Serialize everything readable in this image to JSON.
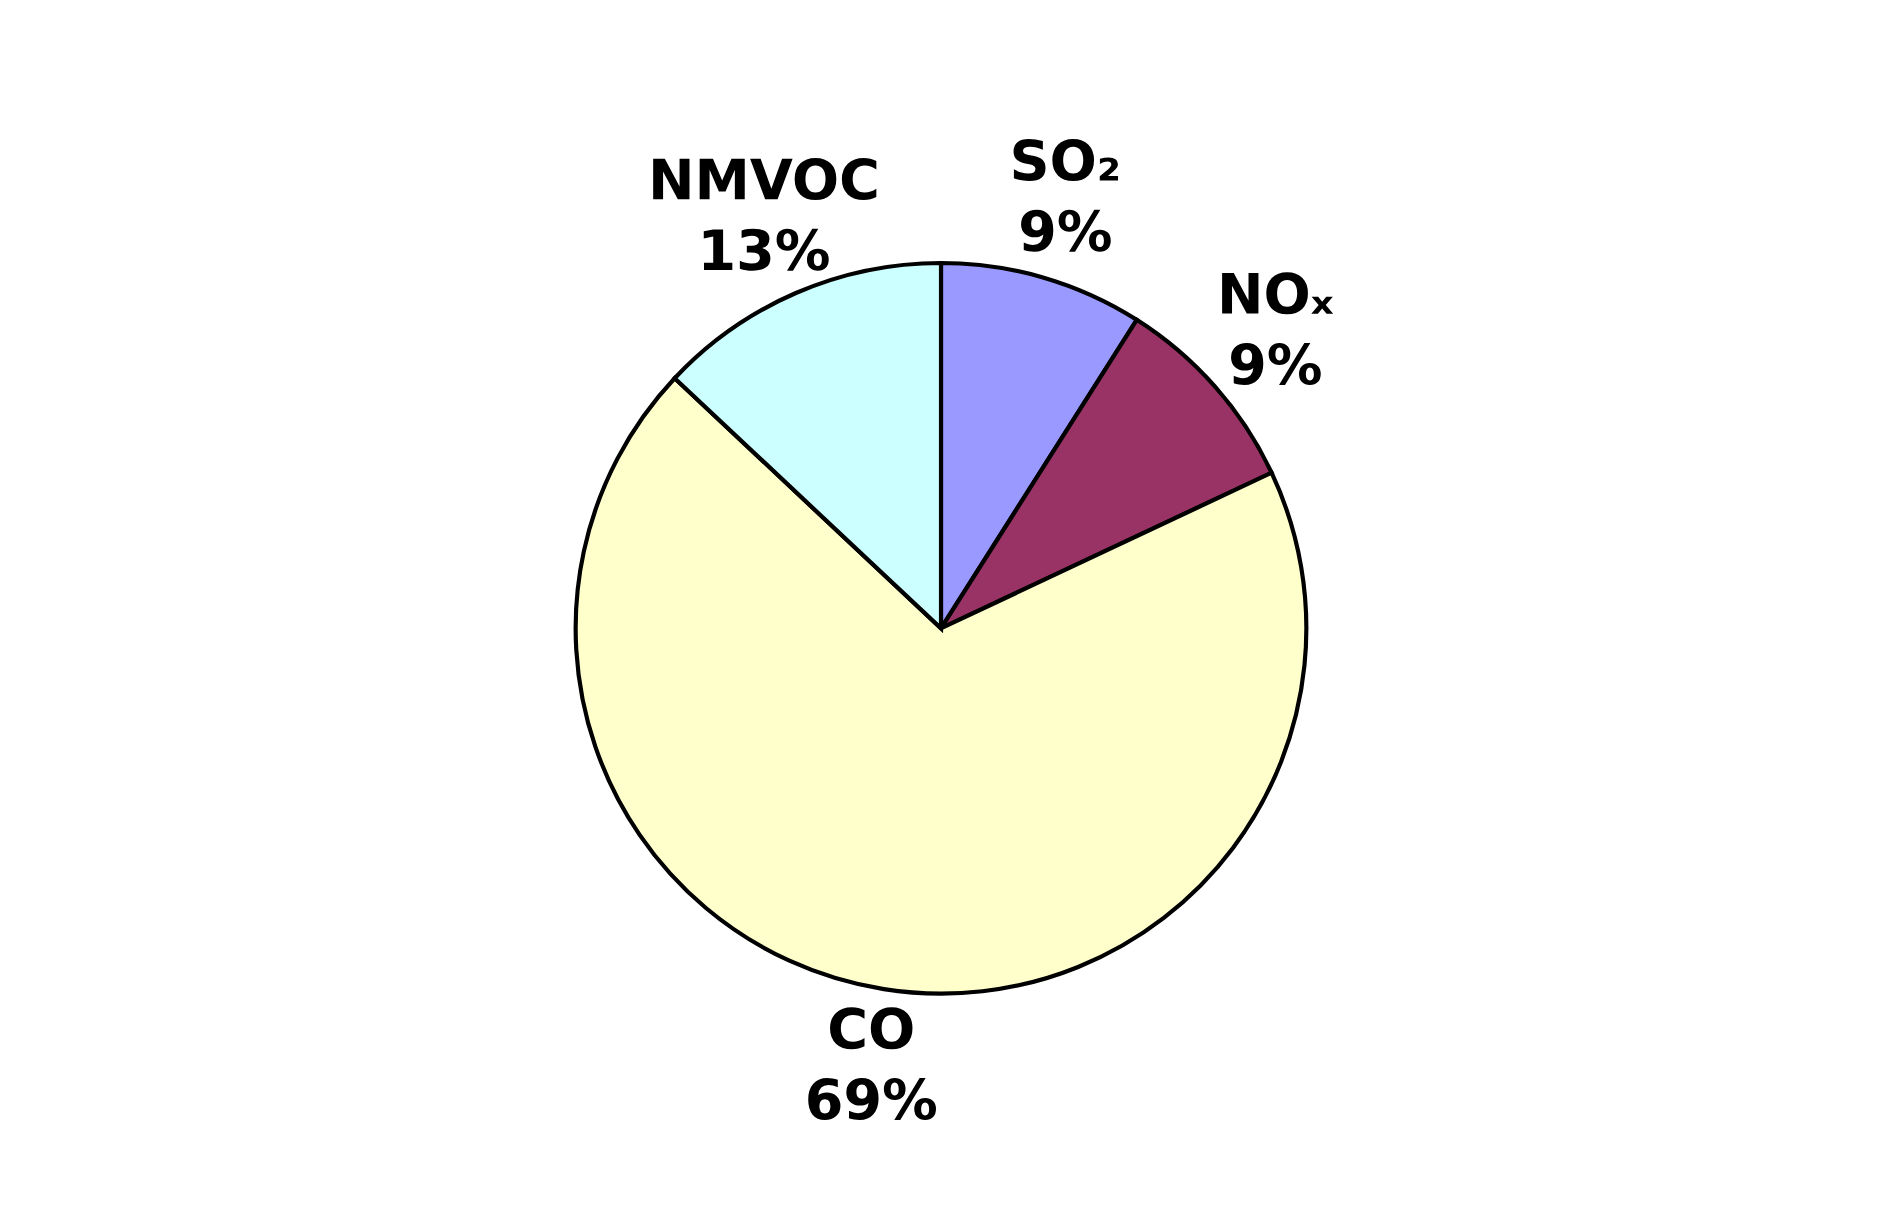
{
  "chart_data": {
    "type": "pie",
    "categories": [
      "SO₂",
      "NOₓ",
      "CO",
      "NMVOC"
    ],
    "values": [
      9,
      9,
      69,
      13
    ],
    "value_labels": [
      "9%",
      "9%",
      "69%",
      "13%"
    ],
    "colors": [
      "#9999ff",
      "#993366",
      "#ffffcc",
      "#ccffff"
    ]
  }
}
